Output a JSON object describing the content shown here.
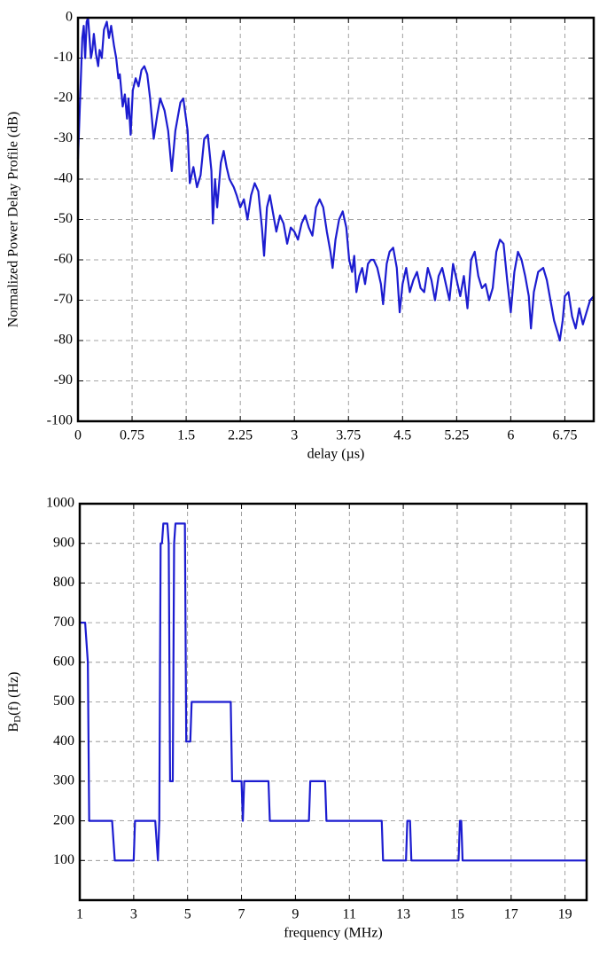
{
  "chart_data": [
    {
      "type": "line",
      "xlabel": "delay (µs)",
      "ylabel": "Normalized Power Delay Profile (dB)",
      "xlim": [
        0,
        7.15
      ],
      "ylim": [
        -100,
        0
      ],
      "xticks": [
        0,
        0.75,
        1.5,
        2.25,
        3,
        3.75,
        4.5,
        5.25,
        6,
        6.75
      ],
      "yticks": [
        0,
        -10,
        -20,
        -30,
        -40,
        -50,
        -60,
        -70,
        -80,
        -90,
        -100
      ],
      "grid": true,
      "series": [
        {
          "color": "#1c1cd0",
          "x": [
            0,
            0.02,
            0.04,
            0.06,
            0.08,
            0.1,
            0.12,
            0.14,
            0.16,
            0.18,
            0.2,
            0.22,
            0.25,
            0.28,
            0.3,
            0.33,
            0.36,
            0.4,
            0.43,
            0.46,
            0.5,
            0.53,
            0.56,
            0.58,
            0.6,
            0.62,
            0.65,
            0.68,
            0.7,
            0.73,
            0.76,
            0.8,
            0.84,
            0.88,
            0.92,
            0.96,
            1.0,
            1.05,
            1.1,
            1.14,
            1.2,
            1.25,
            1.3,
            1.35,
            1.42,
            1.46,
            1.52,
            1.55,
            1.6,
            1.65,
            1.7,
            1.75,
            1.8,
            1.85,
            1.87,
            1.9,
            1.93,
            1.98,
            2.02,
            2.06,
            2.1,
            2.16,
            2.2,
            2.25,
            2.3,
            2.35,
            2.4,
            2.45,
            2.5,
            2.55,
            2.58,
            2.62,
            2.66,
            2.7,
            2.75,
            2.8,
            2.85,
            2.9,
            2.95,
            3.0,
            3.05,
            3.1,
            3.15,
            3.2,
            3.25,
            3.3,
            3.35,
            3.4,
            3.45,
            3.5,
            3.53,
            3.57,
            3.62,
            3.67,
            3.72,
            3.76,
            3.8,
            3.83,
            3.86,
            3.9,
            3.94,
            3.98,
            4.02,
            4.06,
            4.1,
            4.15,
            4.2,
            4.23,
            4.28,
            4.32,
            4.37,
            4.42,
            4.46,
            4.5,
            4.55,
            4.6,
            4.65,
            4.7,
            4.75,
            4.8,
            4.85,
            4.9,
            4.95,
            5.0,
            5.05,
            5.1,
            5.15,
            5.2,
            5.25,
            5.3,
            5.35,
            5.4,
            5.45,
            5.5,
            5.55,
            5.6,
            5.65,
            5.7,
            5.75,
            5.8,
            5.85,
            5.9,
            5.95,
            6.0,
            6.05,
            6.1,
            6.15,
            6.2,
            6.25,
            6.28,
            6.32,
            6.38,
            6.45,
            6.5,
            6.55,
            6.6,
            6.65,
            6.68,
            6.72,
            6.75,
            6.8,
            6.85,
            6.9,
            6.95,
            7.0,
            7.05,
            7.1,
            7.15
          ],
          "values": [
            -35,
            -25,
            -15,
            -5,
            -2,
            -10,
            -1,
            0,
            -5,
            -10,
            -8,
            -4,
            -9,
            -12,
            -8,
            -10,
            -3,
            -1,
            -5,
            -2,
            -7,
            -10,
            -15,
            -14,
            -18,
            -22,
            -19,
            -25,
            -20,
            -29,
            -18,
            -15,
            -17,
            -13,
            -12,
            -14,
            -20,
            -30,
            -24,
            -20,
            -23,
            -28,
            -38,
            -28,
            -21,
            -20,
            -28,
            -41,
            -37,
            -42,
            -39,
            -30,
            -29,
            -38,
            -51,
            -40,
            -47,
            -36,
            -33,
            -37,
            -40,
            -42,
            -44,
            -47,
            -45,
            -50,
            -44,
            -41,
            -43,
            -52,
            -59,
            -47,
            -44,
            -48,
            -53,
            -49,
            -51,
            -56,
            -52,
            -53,
            -55,
            -51,
            -49,
            -52,
            -54,
            -47,
            -45,
            -47,
            -53,
            -58,
            -62,
            -55,
            -50,
            -48,
            -52,
            -60,
            -63,
            -59,
            -68,
            -64,
            -62,
            -66,
            -61,
            -60,
            -60,
            -62,
            -66,
            -71,
            -61,
            -58,
            -57,
            -62,
            -73,
            -66,
            -62,
            -68,
            -65,
            -63,
            -67,
            -68,
            -62,
            -65,
            -70,
            -64,
            -62,
            -66,
            -70,
            -61,
            -65,
            -69,
            -64,
            -72,
            -60,
            -58,
            -64,
            -67,
            -66,
            -70,
            -67,
            -58,
            -55,
            -56,
            -65,
            -73,
            -63,
            -58,
            -60,
            -64,
            -69,
            -77,
            -68,
            -63,
            -62,
            -65,
            -70,
            -75,
            -78,
            -80,
            -75,
            -69,
            -68,
            -74,
            -77,
            -72,
            -76,
            -73,
            -70,
            -69
          ]
        }
      ]
    },
    {
      "type": "line",
      "xlabel": "frequency (MHz)",
      "ylabel": {
        "base": "B",
        "sub": "D",
        "rest": "(f) (Hz)"
      },
      "xlim": [
        1,
        19.8
      ],
      "ylim": [
        0,
        1000
      ],
      "xticks": [
        1,
        3,
        5,
        7,
        9,
        11,
        13,
        15,
        17,
        19
      ],
      "yticks": [
        100,
        200,
        300,
        400,
        500,
        600,
        700,
        800,
        900,
        1000
      ],
      "grid": true,
      "series": [
        {
          "color": "#1c1cd0",
          "x": [
            1,
            1.2,
            1.3,
            1.35,
            2.2,
            2.3,
            3.0,
            3.05,
            3.8,
            3.9,
            3.95,
            4.0,
            4.05,
            4.1,
            4.25,
            4.3,
            4.35,
            4.45,
            4.5,
            4.55,
            4.9,
            4.95,
            5.1,
            5.15,
            6.6,
            6.65,
            7.0,
            7.05,
            7.1,
            8.0,
            8.05,
            9.5,
            9.55,
            10.1,
            10.15,
            12.2,
            12.25,
            13.1,
            13.15,
            13.25,
            13.3,
            15.05,
            15.1,
            15.15,
            15.2,
            19.8
          ],
          "values": [
            700,
            700,
            600,
            200,
            200,
            100,
            100,
            200,
            200,
            100,
            200,
            900,
            900,
            950,
            950,
            900,
            300,
            300,
            900,
            950,
            950,
            400,
            400,
            500,
            500,
            300,
            300,
            200,
            300,
            300,
            200,
            200,
            300,
            300,
            200,
            200,
            100,
            100,
            200,
            200,
            100,
            100,
            200,
            200,
            100,
            100
          ]
        }
      ]
    }
  ]
}
